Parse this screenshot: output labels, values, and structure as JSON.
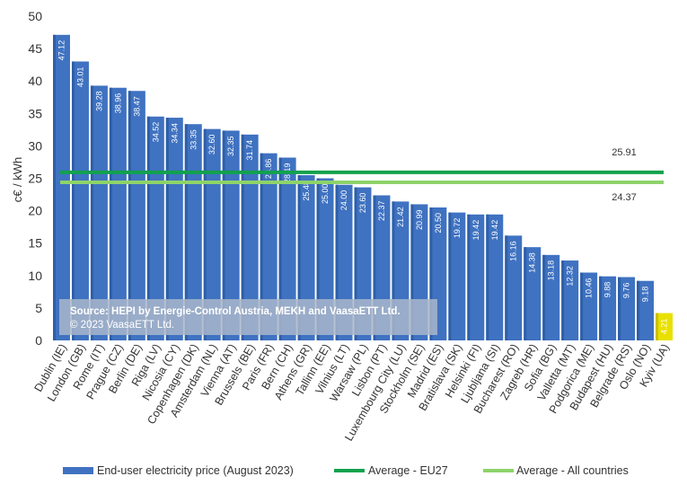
{
  "chart_data": {
    "type": "bar",
    "ylabel": "c€ / kWh",
    "ylim": [
      0,
      50
    ],
    "yticks": [
      0,
      5,
      10,
      15,
      20,
      25,
      30,
      35,
      40,
      45,
      50
    ],
    "grid": false,
    "legend_position": "bottom",
    "categories": [
      "Dublin (IE)",
      "London (GB)",
      "Rome (IT)",
      "Prague (CZ)",
      "Berlin (DE)",
      "Riga (LV)",
      "Nicosia (CY)",
      "Copenhagen (DK)",
      "Amsterdam (NL)",
      "Vienna (AT)",
      "Brussels (BE)",
      "Paris (FR)",
      "Bern (CH)",
      "Athens (GR)",
      "Tallinn (EE)",
      "Vilnius (LT)",
      "Warsaw (PL)",
      "Lisbon (PT)",
      "Luxembourg City (LU)",
      "Stockholm (SE)",
      "Madrid (ES)",
      "Bratislava (SK)",
      "Helsinki (FI)",
      "Ljubljana (SI)",
      "Bucharest (RO)",
      "Zagreb (HR)",
      "Sofia (BG)",
      "Valletta (MT)",
      "Podgorica (ME)",
      "Budapest (HU)",
      "Belgrade (RS)",
      "Oslo (NO)",
      "Kyiv (UA)"
    ],
    "values": [
      47.12,
      43.01,
      39.28,
      38.96,
      38.47,
      34.52,
      34.34,
      33.35,
      32.6,
      32.35,
      31.74,
      28.86,
      28.19,
      25.48,
      25.0,
      24.0,
      23.6,
      22.37,
      21.42,
      20.99,
      20.5,
      19.72,
      19.42,
      19.42,
      16.16,
      14.38,
      13.18,
      12.32,
      10.46,
      9.88,
      9.76,
      9.18,
      4.21
    ],
    "value_labels": [
      "47.12",
      "43.01",
      "39.28",
      "38.96",
      "38.47",
      "34.52",
      "34.34",
      "33.35",
      "32.60",
      "32.35",
      "31.74",
      "28.86",
      "28.19",
      "25.48",
      "25.00",
      "24.00",
      "23.60",
      "22.37",
      "21.42",
      "20.99",
      "20.50",
      "19.72",
      "19.42",
      "19.42",
      "16.16",
      "14.38",
      "13.18",
      "12.32",
      "10.46",
      "9.88",
      "9.76",
      "9.18",
      "4.21"
    ],
    "highlight_index": 32,
    "series": [
      {
        "name": "End-user electricity price (August 2023)",
        "color": "#3f72c1"
      }
    ],
    "reference_lines": [
      {
        "name": "Average - EU27",
        "value": 25.91,
        "label": "25.91",
        "color": "#12a24c"
      },
      {
        "name": "Average - All countries",
        "value": 24.37,
        "label": "24.37",
        "color": "#8ed36a"
      }
    ],
    "highlight_color": "#e9e000"
  },
  "source": {
    "line1": "Source: HEPI by Energie-Control Austria, MEKH and VaasaETT Ltd.",
    "line2": "© 2023 VaasaETT Ltd."
  }
}
